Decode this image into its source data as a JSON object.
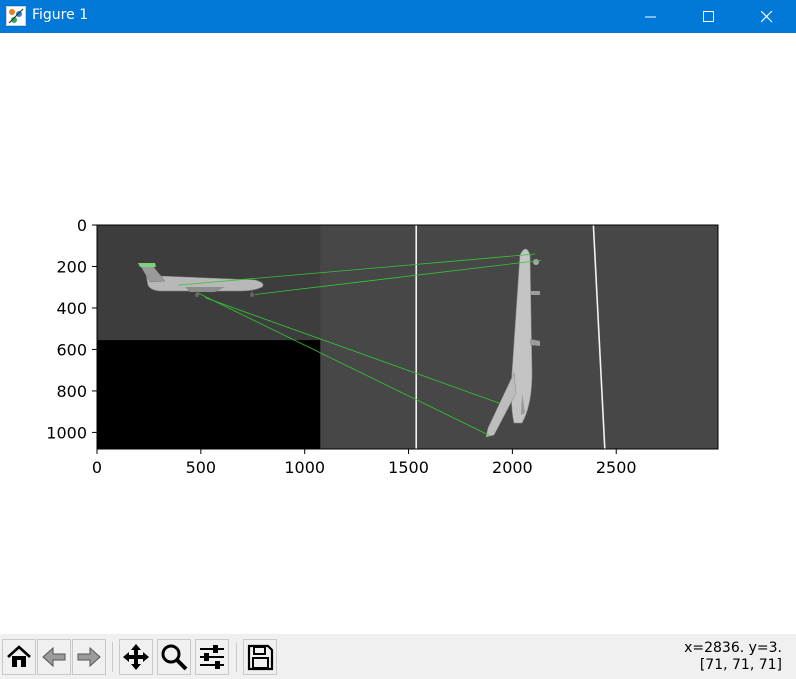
{
  "window": {
    "title": "Figure 1"
  },
  "titlebar_icons": {
    "app": "matplotlib-figure-icon",
    "minimize": "minimize-icon",
    "maximize": "maximize-icon",
    "close": "close-icon"
  },
  "chart_data": {
    "type": "image",
    "description_free": true,
    "xlim": [
      0,
      2990
    ],
    "ylim": [
      1080,
      0
    ],
    "x_ticks": [
      0,
      500,
      1000,
      1500,
      2000,
      2500
    ],
    "y_ticks": [
      0,
      200,
      400,
      600,
      800,
      1000
    ],
    "x_tick_labels": [
      "0",
      "500",
      "1000",
      "1500",
      "2000",
      "2500"
    ],
    "y_tick_labels": [
      "0",
      "200",
      "400",
      "600",
      "800",
      "1000"
    ],
    "left_image": {
      "x_range": [
        0,
        1075
      ],
      "y_range": [
        0,
        1080
      ],
      "content_y_range": [
        0,
        555
      ]
    },
    "match_lines": [
      {
        "x1": 390,
        "y1": 290,
        "x2": 2110,
        "y2": 140,
        "color": "#34c734"
      },
      {
        "x1": 760,
        "y1": 335,
        "x2": 2140,
        "y2": 170,
        "color": "#34c734"
      },
      {
        "x1": 520,
        "y1": 350,
        "x2": 1940,
        "y2": 860,
        "color": "#34c734"
      },
      {
        "x1": 480,
        "y1": 325,
        "x2": 1890,
        "y2": 1015,
        "color": "#34c734"
      }
    ],
    "runway_lines": [
      {
        "x1": 1537,
        "y1": 0,
        "x2": 1537,
        "y2": 1080,
        "color": "#f2f2f2"
      },
      {
        "x1": 2390,
        "y1": 0,
        "x2": 2445,
        "y2": 1080,
        "color": "#f2f2f2"
      }
    ],
    "colors": {
      "right_bg": "#474747",
      "left_top_bg": "#3d3d3d",
      "left_bottom_bg": "#000000"
    }
  },
  "toolbar": {
    "icons": [
      "home-icon",
      "back-icon",
      "forward-icon",
      "pan-icon",
      "zoom-icon",
      "configure-subplots-icon",
      "save-icon"
    ]
  },
  "status": {
    "coords": "x=2836. y=3.",
    "pixel": "[71, 71, 71]"
  }
}
